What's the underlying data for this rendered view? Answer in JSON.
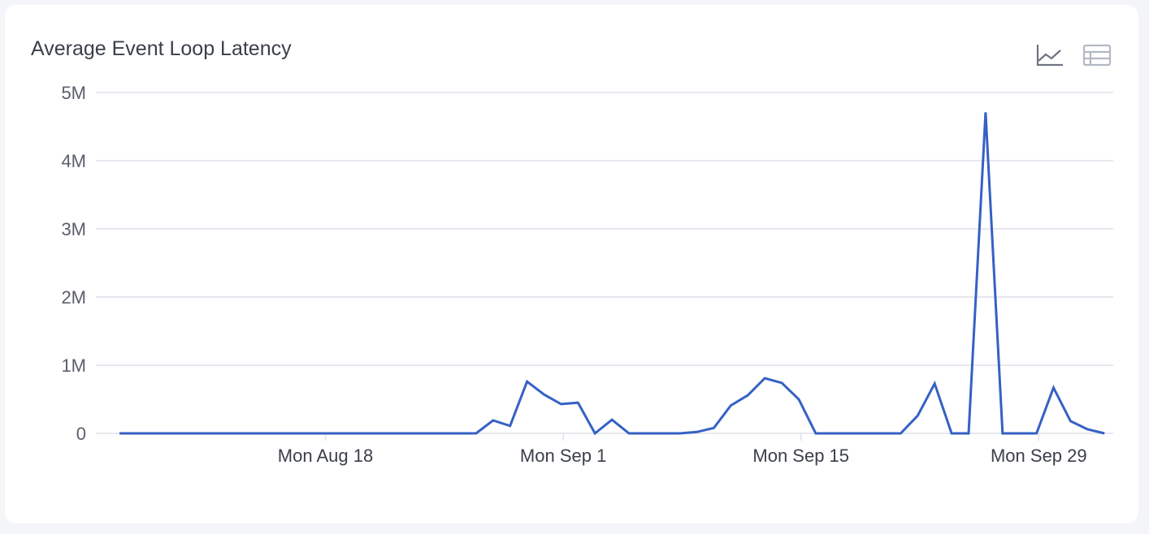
{
  "chart_data": {
    "type": "line",
    "title": "Average Event Loop Latency",
    "xlabel": "",
    "ylabel": "",
    "ylim": [
      0,
      5000000
    ],
    "yticks": [
      {
        "value": 0,
        "label": "0"
      },
      {
        "value": 1000000,
        "label": "1M"
      },
      {
        "value": 2000000,
        "label": "2M"
      },
      {
        "value": 3000000,
        "label": "3M"
      },
      {
        "value": 4000000,
        "label": "4M"
      },
      {
        "value": 5000000,
        "label": "5M"
      }
    ],
    "xticks": [
      {
        "date": "2025-08-18",
        "label": "Mon Aug 18"
      },
      {
        "date": "2025-09-01",
        "label": "Mon Sep 1"
      },
      {
        "date": "2025-09-15",
        "label": "Mon Sep 15"
      },
      {
        "date": "2025-09-29",
        "label": "Mon Sep 29"
      }
    ],
    "x_start": "2025-08-06",
    "x_step": "1 day",
    "grid": true,
    "line_color": "#3561c4",
    "values": [
      0,
      0,
      0,
      0,
      0,
      0,
      0,
      0,
      0,
      0,
      0,
      0,
      0,
      0,
      0,
      0,
      0,
      0,
      0,
      0,
      0,
      0,
      190000,
      110000,
      760000,
      570000,
      430000,
      450000,
      0,
      200000,
      0,
      0,
      0,
      0,
      20000,
      80000,
      410000,
      560000,
      810000,
      740000,
      500000,
      0,
      0,
      0,
      0,
      0,
      0,
      260000,
      730000,
      0,
      0,
      4710000,
      0,
      0,
      0,
      670000,
      180000,
      60000,
      0
    ]
  },
  "toolbar": {
    "icons": [
      "line-chart-icon",
      "table-icon"
    ]
  }
}
